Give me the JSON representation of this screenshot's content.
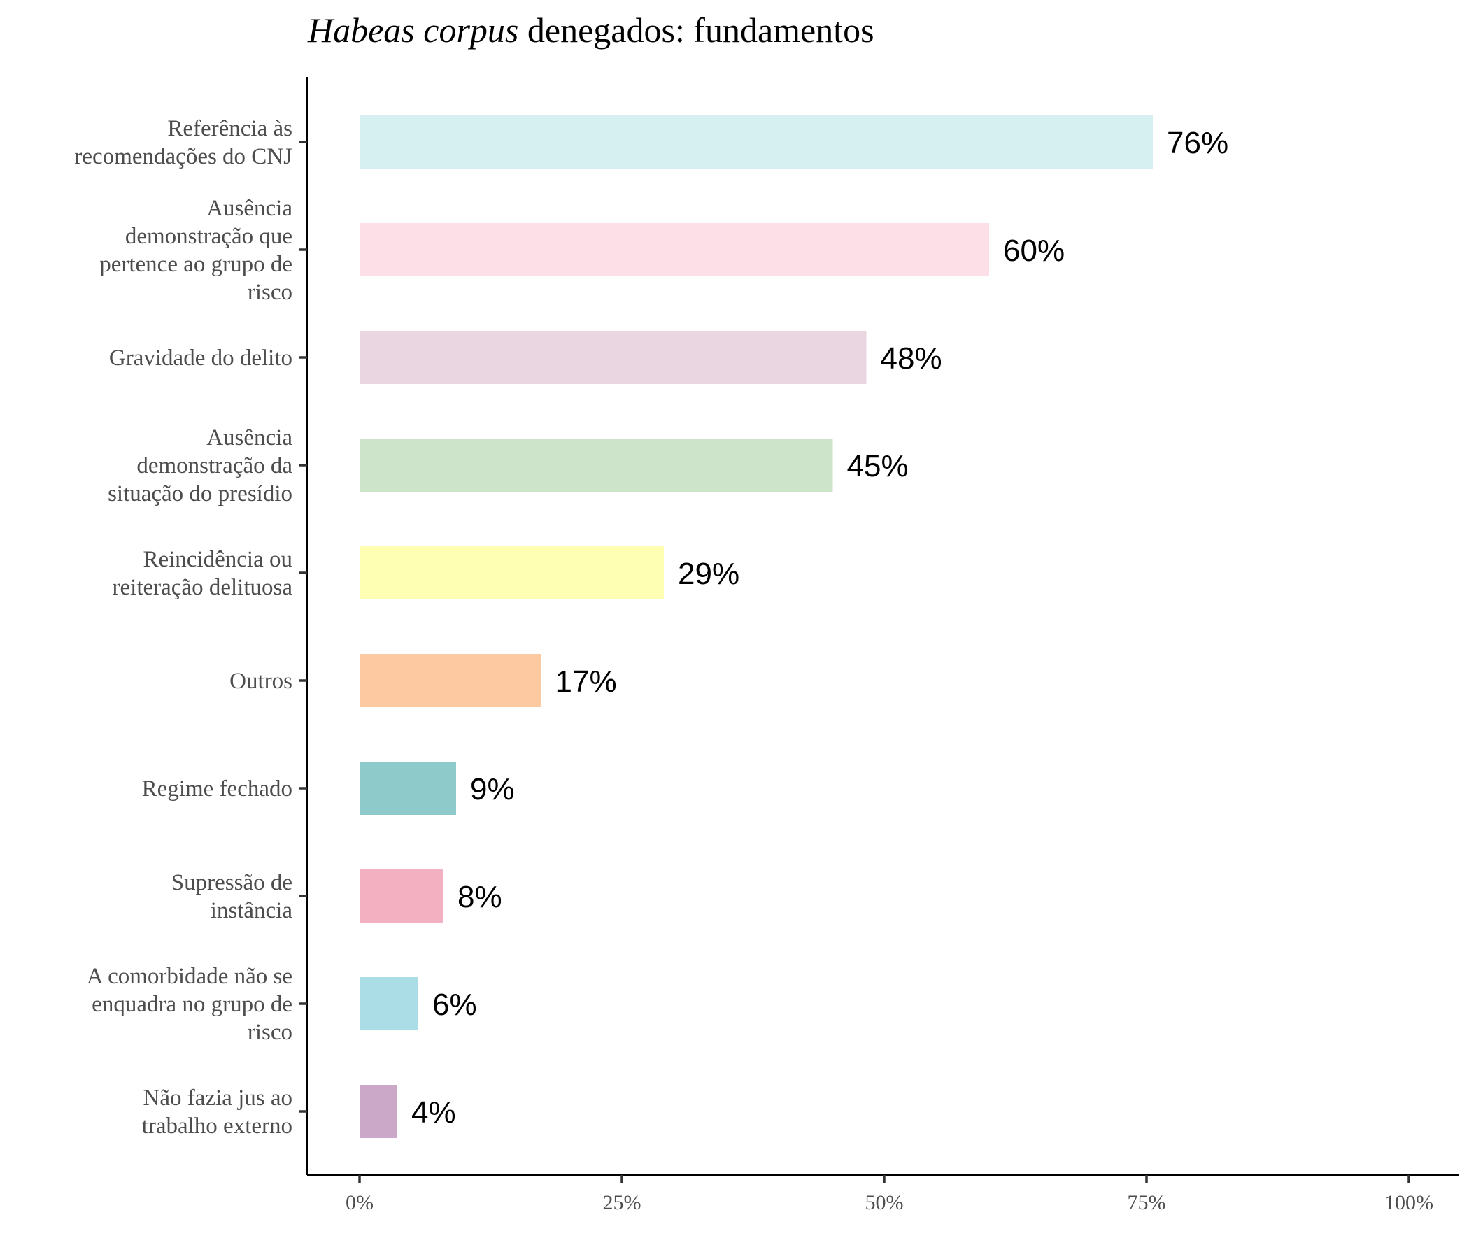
{
  "chart_data": {
    "type": "bar",
    "orientation": "horizontal",
    "title": {
      "italic_part": "Habeas corpus",
      "rest": " denegados: fundamentos"
    },
    "xlabel": "",
    "ylabel": "",
    "xlim": [
      0,
      100
    ],
    "x_ticks": [
      0,
      25,
      50,
      75,
      100
    ],
    "x_tick_labels": [
      "0%",
      "25%",
      "50%",
      "75%",
      "100%"
    ],
    "grid": false,
    "legend": "none",
    "categories": [
      "Referência às\nrecomendações do CNJ",
      "Ausência\ndemonstração que\npertence ao grupo de\nrisco",
      "Gravidade do delito",
      "Ausência\ndemonstração da\nsituação do presídio",
      "Reincidência ou\nreiteração delituosa",
      "Outros",
      "Regime fechado",
      "Supressão de\ninstância",
      "A comorbidade não se\nenquadra no grupo de\nrisco",
      "Não fazia jus ao\ntrabalho externo"
    ],
    "values": [
      75.6,
      60,
      48.3,
      45.1,
      29,
      17.3,
      9.2,
      8,
      5.6,
      3.6
    ],
    "data_labels": [
      "76%",
      "60%",
      "48%",
      "45%",
      "29%",
      "17%",
      "9%",
      "8%",
      "6%",
      "4%"
    ],
    "colors": [
      "#d6eff0",
      "#fde0e7",
      "#e9d6e1",
      "#cde3ca",
      "#ffffb3",
      "#fdc9a1",
      "#8fcacb",
      "#f3b0c1",
      "#aadde6",
      "#cba7c8"
    ]
  }
}
